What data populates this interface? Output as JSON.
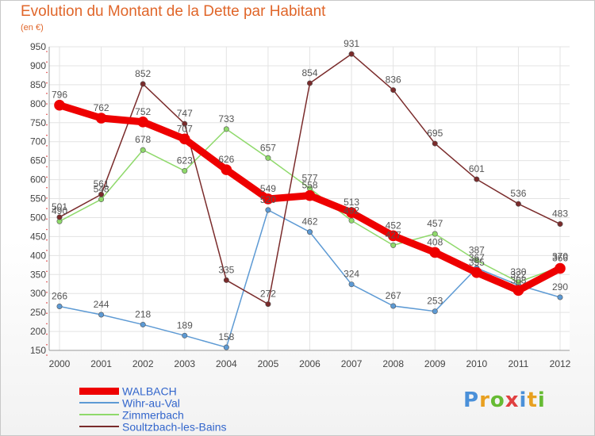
{
  "chart_data": {
    "type": "line",
    "title": "Evolution du Montant de la Dette par Habitant",
    "unit_label": "(en €)",
    "x": [
      "2000",
      "2001",
      "2002",
      "2003",
      "2004",
      "2005",
      "2006",
      "2007",
      "2008",
      "2009",
      "2010",
      "2011",
      "2012"
    ],
    "ylim": [
      150,
      950
    ],
    "yticks": [
      150,
      200,
      250,
      300,
      350,
      400,
      450,
      500,
      550,
      600,
      650,
      700,
      750,
      800,
      850,
      900,
      950
    ],
    "grid": true,
    "legend_position": "bottom-left",
    "series": [
      {
        "name": "WALBACH",
        "color": "#ee0000",
        "width": 9,
        "values": [
          796,
          762,
          752,
          707,
          626,
          549,
          558,
          513,
          452,
          408,
          355,
          308,
          366
        ]
      },
      {
        "name": "Wihr-au-Val",
        "color": "#5d9ad4",
        "width": 1.5,
        "values": [
          266,
          244,
          218,
          189,
          158,
          520,
          462,
          324,
          267,
          253,
          367,
          322,
          290
        ]
      },
      {
        "name": "Zimmerbach",
        "color": "#8fd96b",
        "width": 1.5,
        "values": [
          490,
          548,
          678,
          623,
          733,
          657,
          577,
          492,
          427,
          457,
          387,
          330,
          370
        ]
      },
      {
        "name": "Soultzbach-les-Bains",
        "color": "#7a2b2b",
        "width": 1.5,
        "values": [
          501,
          561,
          852,
          747,
          335,
          272,
          854,
          931,
          836,
          695,
          601,
          536,
          483
        ]
      }
    ]
  },
  "logo": {
    "letters": [
      "P",
      "r",
      "o",
      "x",
      "i",
      "t",
      "i"
    ],
    "colors": [
      "#4a90d9",
      "#e8a020",
      "#66bb33",
      "#e04040",
      "#4a90d9",
      "#e8a020",
      "#66bb33"
    ]
  }
}
